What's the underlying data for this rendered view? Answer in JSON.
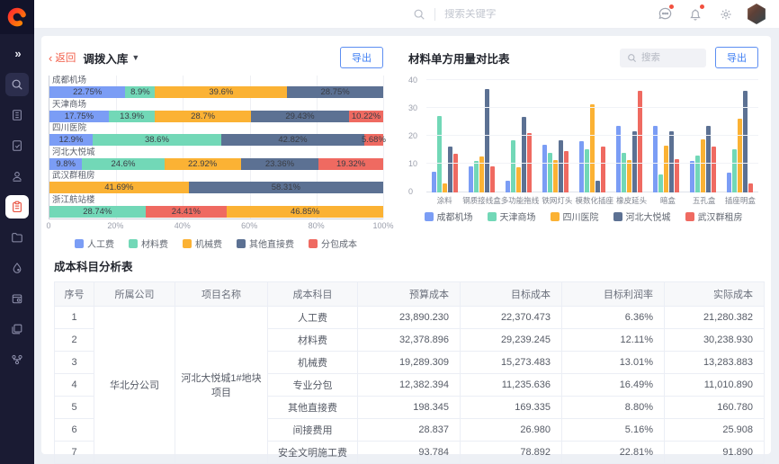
{
  "app": {
    "accent": "#4180f4",
    "back_red": "#f25e49",
    "sidebar_bg": "#1a1b33",
    "active_icon_red": "#e8503f"
  },
  "header": {
    "search_placeholder": "搜索关键字"
  },
  "sidebar": {
    "icons": [
      "expand",
      "search",
      "building",
      "document",
      "user",
      "clipboard",
      "folder",
      "drop",
      "calendar",
      "pages",
      "workflow"
    ],
    "active": "clipboard"
  },
  "left_panel": {
    "back": "返回",
    "title": "调拨入库",
    "export": "导出"
  },
  "right_panel": {
    "title": "材料单方用量对比表",
    "search_placeholder": "搜索",
    "export": "导出"
  },
  "table": {
    "title": "成本科目分析表",
    "columns": [
      "序号",
      "所属公司",
      "项目名称",
      "成本科目",
      "预算成本",
      "目标成本",
      "目标利润率",
      "实际成本"
    ],
    "company": "华北分公司",
    "project": "河北大悦城1#地块项目",
    "rows": [
      {
        "no": "1",
        "subject": "人工费",
        "budget": "23,890.230",
        "target": "22,370.473",
        "margin": "6.36%",
        "actual": "21,280.382"
      },
      {
        "no": "2",
        "subject": "材料费",
        "budget": "32,378.896",
        "target": "29,239.245",
        "margin": "12.11%",
        "actual": "30,238.930"
      },
      {
        "no": "3",
        "subject": "机械费",
        "budget": "19,289.309",
        "target": "15,273.483",
        "margin": "13.01%",
        "actual": "13,283.883"
      },
      {
        "no": "4",
        "subject": "专业分包",
        "budget": "12,382.394",
        "target": "11,235.636",
        "margin": "16.49%",
        "actual": "11,010.890"
      },
      {
        "no": "5",
        "subject": "其他直接费",
        "budget": "198.345",
        "target": "169.335",
        "margin": "8.80%",
        "actual": "160.780"
      },
      {
        "no": "6",
        "subject": "间接费用",
        "budget": "28.837",
        "target": "26.980",
        "margin": "5.16%",
        "actual": "25.908"
      },
      {
        "no": "7",
        "subject": "安全文明施工费",
        "budget": "93.784",
        "target": "78.892",
        "margin": "22.81%",
        "actual": "91.890"
      }
    ]
  },
  "chart_data": [
    {
      "type": "bar",
      "orientation": "horizontal-stacked-percent",
      "title": "调拨入库",
      "legend": [
        "人工费",
        "材料费",
        "机械费",
        "其他直接费",
        "分包成本"
      ],
      "colors": {
        "人工费": "#7b9df5",
        "材料费": "#72d8b7",
        "机械费": "#fbb234",
        "其他直接费": "#5c7193",
        "分包成本": "#ef6a61"
      },
      "x_ticks": [
        "0",
        "20%",
        "40%",
        "60%",
        "80%",
        "100%"
      ],
      "xlim": [
        0,
        100
      ],
      "bars": [
        {
          "category": "成都机场",
          "segments": [
            {
              "name": "人工费",
              "value": 22.75
            },
            {
              "name": "材料费",
              "value": 8.9
            },
            {
              "name": "机械费",
              "value": 39.6
            },
            {
              "name": "其他直接费",
              "value": 28.75
            }
          ]
        },
        {
          "category": "天津商场",
          "segments": [
            {
              "name": "人工费",
              "value": 17.75
            },
            {
              "name": "材料费",
              "value": 13.9
            },
            {
              "name": "机械费",
              "value": 28.7
            },
            {
              "name": "其他直接费",
              "value": 29.43
            },
            {
              "name": "分包成本",
              "value": 10.22
            }
          ]
        },
        {
          "category": "四川医院",
          "segments": [
            {
              "name": "人工费",
              "value": 12.9
            },
            {
              "name": "材料费",
              "value": 38.6
            },
            {
              "name": "其他直接费",
              "value": 42.82
            },
            {
              "name": "分包成本",
              "value": 5.68
            }
          ]
        },
        {
          "category": "河北大悦城",
          "segments": [
            {
              "name": "人工费",
              "value": 9.8
            },
            {
              "name": "材料费",
              "value": 24.6
            },
            {
              "name": "机械费",
              "value": 22.92
            },
            {
              "name": "其他直接费",
              "value": 23.36
            },
            {
              "name": "分包成本",
              "value": 19.32
            }
          ]
        },
        {
          "category": "武汉群租房",
          "segments": [
            {
              "name": "机械费",
              "value": 41.69
            },
            {
              "name": "其他直接费",
              "value": 58.31
            }
          ]
        },
        {
          "category": "浙江航站楼",
          "segments": [
            {
              "name": "材料费",
              "value": 28.74
            },
            {
              "name": "分包成本",
              "value": 24.41
            },
            {
              "name": "机械费",
              "value": 46.85
            }
          ]
        }
      ]
    },
    {
      "type": "bar",
      "orientation": "vertical-grouped",
      "title": "材料单方用量对比表",
      "categories": [
        "涂料",
        "钢质接线盒",
        "多功能拖线",
        "铁网灯头",
        "模数化插座",
        "橡皮延头",
        "暗盒",
        "五孔盒",
        "插座明盒"
      ],
      "series": [
        {
          "name": "成都机场",
          "color": "#7b9df5",
          "values": [
            7.5,
            9.5,
            4.3,
            17,
            18.4,
            24,
            24,
            11.2,
            7
          ]
        },
        {
          "name": "天津商场",
          "color": "#72d8b7",
          "values": [
            27.5,
            11.2,
            18.7,
            14.1,
            15.4,
            14.2,
            6.6,
            13.2,
            15.5
          ]
        },
        {
          "name": "四川医院",
          "color": "#fbb234",
          "values": [
            3.3,
            12.8,
            8.9,
            11.5,
            31.5,
            11.5,
            16.8,
            19.1,
            26.5
          ]
        },
        {
          "name": "河北大悦城",
          "color": "#5c7193",
          "values": [
            16.4,
            37.2,
            27.2,
            18.8,
            4.3,
            21.8,
            21.8,
            23.8,
            36.5
          ]
        },
        {
          "name": "武汉群租房",
          "color": "#ef6a61",
          "values": [
            14,
            9.5,
            21.3,
            15,
            16.5,
            36.5,
            12,
            16.5,
            3.3
          ]
        }
      ],
      "ylim": [
        0,
        40
      ],
      "yticks": [
        0,
        10,
        20,
        30,
        40
      ],
      "grid": true,
      "legend_position": "bottom"
    }
  ]
}
